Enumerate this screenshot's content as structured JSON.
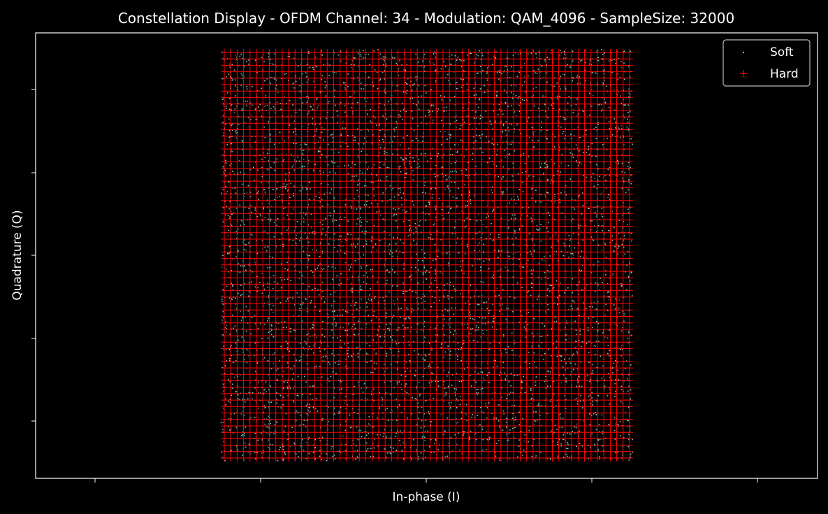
{
  "chart_data": {
    "type": "scatter",
    "title": "Constellation Display - OFDM Channel: 34 - Modulation: QAM_4096 - SampleSize: 32000",
    "xlabel": "In-phase (I)",
    "ylabel": "Quadrature (Q)",
    "tick_labels_shown": false,
    "grid": false,
    "legend": {
      "placement": "top-right",
      "entries": [
        "Soft",
        "Hard"
      ]
    },
    "constellation": {
      "modulation": "QAM_4096",
      "points_per_axis": 64,
      "levels": "odd integers -63..63"
    },
    "series": [
      {
        "name": "Soft",
        "marker": "dot",
        "color": "#7fc8b8",
        "count": 32000,
        "distribution": "Noisy samples scattered around each hard point"
      },
      {
        "name": "Hard",
        "marker": "plus",
        "color": "#ff0000",
        "count": 4096
      }
    ]
  },
  "colors": {
    "background": "#000000",
    "axes": "#ffffff",
    "soft": "#7fc8b8",
    "hard": "#ff0000"
  }
}
